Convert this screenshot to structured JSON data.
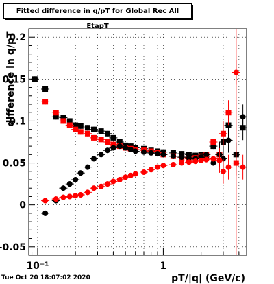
{
  "chart_data": {
    "type": "scatter",
    "title": "Fitted difference in q/pT for Global Rec All EtapT",
    "xlabel": "pT/|q| (GeV/c)",
    "ylabel": "difference in q/pT",
    "x_scale": "log",
    "xlim": [
      0.085,
      4.6
    ],
    "ylim": [
      -0.06,
      0.21
    ],
    "grid": true,
    "x_tick_labels": [
      "10⁻¹",
      "1"
    ],
    "y_tick_labels": [
      "-0.05",
      "0",
      "0.05",
      "0.1",
      "0.15",
      "0.2"
    ],
    "series": [
      {
        "marker": "square",
        "color": "#000000",
        "x": [
          0.095,
          0.115,
          0.14,
          0.16,
          0.18,
          0.2,
          0.22,
          0.25,
          0.28,
          0.32,
          0.36,
          0.4,
          0.45,
          0.5,
          0.55,
          0.6,
          0.7,
          0.8,
          0.9,
          1.0,
          1.2,
          1.4,
          1.6,
          1.8,
          2.0,
          2.2,
          2.5,
          2.8,
          3.0,
          3.3,
          3.8,
          4.3
        ],
        "y": [
          0.15,
          0.138,
          0.105,
          0.104,
          0.1,
          0.095,
          0.094,
          0.092,
          0.09,
          0.088,
          0.085,
          0.08,
          0.075,
          0.071,
          0.07,
          0.068,
          0.067,
          0.065,
          0.064,
          0.063,
          0.062,
          0.061,
          0.06,
          0.059,
          0.06,
          0.058,
          0.07,
          0.06,
          0.075,
          0.095,
          0.06,
          0.092
        ]
      },
      {
        "marker": "square",
        "color": "#ff0000",
        "x": [
          0.115,
          0.14,
          0.16,
          0.18,
          0.2,
          0.22,
          0.25,
          0.28,
          0.32,
          0.36,
          0.4,
          0.45,
          0.5,
          0.55,
          0.6,
          0.7,
          0.8,
          0.9,
          1.0,
          1.2,
          1.4,
          1.6,
          1.8,
          2.0,
          2.2,
          2.5,
          2.8,
          3.0,
          3.3,
          3.8
        ],
        "y": [
          0.123,
          0.11,
          0.1,
          0.095,
          0.09,
          0.087,
          0.085,
          0.08,
          0.078,
          0.075,
          0.072,
          0.07,
          0.068,
          0.067,
          0.066,
          0.065,
          0.064,
          0.062,
          0.06,
          0.058,
          0.056,
          0.055,
          0.056,
          0.058,
          0.06,
          0.075,
          0.06,
          0.085,
          0.11,
          0.05
        ]
      },
      {
        "marker": "circle",
        "color": "#000000",
        "x": [
          0.115,
          0.14,
          0.16,
          0.18,
          0.2,
          0.22,
          0.25,
          0.28,
          0.32,
          0.36,
          0.4,
          0.45,
          0.5,
          0.55,
          0.6,
          0.7,
          0.8,
          0.9,
          1.0,
          1.2,
          1.4,
          1.6,
          1.8,
          2.0,
          2.2,
          2.5,
          2.8,
          3.0,
          3.3,
          4.3
        ],
        "y": [
          -0.01,
          0.005,
          0.02,
          0.025,
          0.03,
          0.038,
          0.045,
          0.055,
          0.06,
          0.065,
          0.068,
          0.07,
          0.068,
          0.066,
          0.064,
          0.063,
          0.062,
          0.061,
          0.06,
          0.058,
          0.057,
          0.056,
          0.055,
          0.057,
          0.06,
          0.05,
          0.06,
          0.055,
          0.077,
          0.105
        ]
      },
      {
        "marker": "circle",
        "color": "#ff0000",
        "x": [
          0.115,
          0.14,
          0.16,
          0.18,
          0.2,
          0.22,
          0.25,
          0.28,
          0.32,
          0.36,
          0.4,
          0.45,
          0.5,
          0.55,
          0.6,
          0.7,
          0.8,
          0.9,
          1.0,
          1.2,
          1.4,
          1.6,
          1.8,
          2.0,
          2.2,
          2.5,
          2.8,
          3.0,
          3.3,
          3.8,
          4.3
        ],
        "y": [
          0.005,
          0.007,
          0.009,
          0.01,
          0.011,
          0.012,
          0.015,
          0.02,
          0.022,
          0.025,
          0.028,
          0.03,
          0.033,
          0.035,
          0.037,
          0.039,
          0.042,
          0.045,
          0.047,
          0.048,
          0.05,
          0.051,
          0.052,
          0.053,
          0.054,
          0.055,
          0.053,
          0.04,
          0.045,
          0.158,
          0.045
        ]
      }
    ]
  },
  "timestamp": "Tue Oct 20 18:07:02 2020"
}
